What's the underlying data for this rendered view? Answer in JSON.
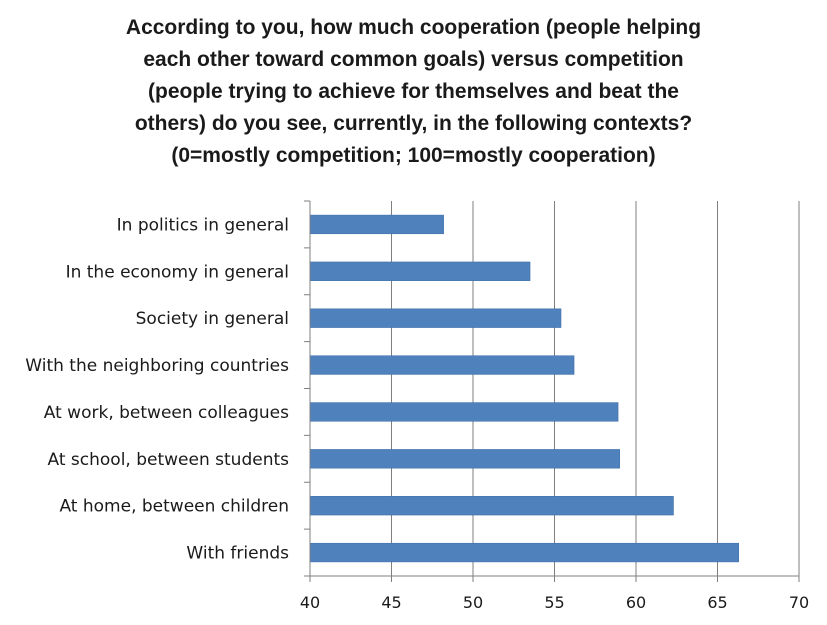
{
  "chart_data": {
    "type": "bar",
    "orientation": "horizontal",
    "title_lines": [
      "According to you, how much cooperation (people helping",
      "each other toward common goals) versus competition",
      "(people trying to achieve for themselves and beat the",
      "others) do you see, currently, in the following contexts?",
      "(0=mostly competition; 100=mostly cooperation)"
    ],
    "categories": [
      "In politics in general",
      "In the economy in general",
      "Society in general",
      "With the neighboring countries",
      "At work, between colleagues",
      "At school, between students",
      "At home, between children",
      "With friends"
    ],
    "values": [
      48.2,
      53.5,
      55.4,
      56.2,
      58.9,
      59.0,
      62.3,
      66.3
    ],
    "xlim": [
      40,
      70
    ],
    "xticks": [
      40,
      45,
      50,
      55,
      60,
      65,
      70
    ],
    "xlabel": "",
    "ylabel": "",
    "grid": "vertical",
    "legend": "none",
    "colors": {
      "bar": "#4F81BD",
      "bar_edge": "#3A6BA5",
      "grid": "#7f7f7f",
      "axis": "#7f7f7f",
      "text": "#1a1a1a"
    }
  }
}
